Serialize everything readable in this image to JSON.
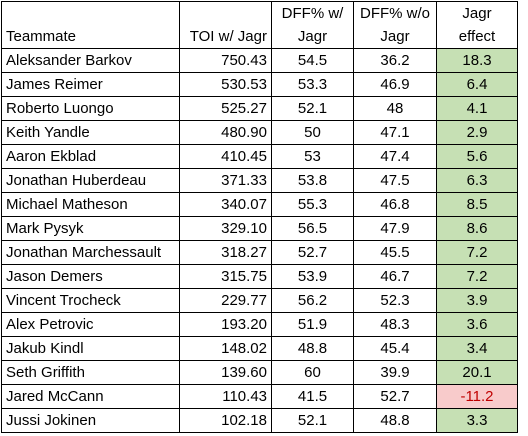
{
  "headers": {
    "teammate": "Teammate",
    "toi": "TOI w/ Jagr",
    "dff_with_line1": "DFF% w/",
    "dff_with_line2": "Jagr",
    "dff_without_line1": "DFF% w/o",
    "dff_without_line2": "Jagr",
    "effect_line1": "Jagr",
    "effect_line2": "effect"
  },
  "colors": {
    "positive_fill": "#c6e0b4",
    "negative_fill": "#f8cbcb",
    "negative_text": "#c00000"
  },
  "rows": [
    {
      "name": "Aleksander Barkov",
      "toi": "750.43",
      "dff_with": "54.5",
      "dff_without": "36.2",
      "effect": "18.3",
      "effect_sign": "pos"
    },
    {
      "name": "James Reimer",
      "toi": "530.53",
      "dff_with": "53.3",
      "dff_without": "46.9",
      "effect": "6.4",
      "effect_sign": "pos"
    },
    {
      "name": "Roberto Luongo",
      "toi": "525.27",
      "dff_with": "52.1",
      "dff_without": "48",
      "effect": "4.1",
      "effect_sign": "pos"
    },
    {
      "name": "Keith Yandle",
      "toi": "480.90",
      "dff_with": "50",
      "dff_without": "47.1",
      "effect": "2.9",
      "effect_sign": "pos"
    },
    {
      "name": "Aaron Ekblad",
      "toi": "410.45",
      "dff_with": "53",
      "dff_without": "47.4",
      "effect": "5.6",
      "effect_sign": "pos"
    },
    {
      "name": "Jonathan Huberdeau",
      "toi": "371.33",
      "dff_with": "53.8",
      "dff_without": "47.5",
      "effect": "6.3",
      "effect_sign": "pos"
    },
    {
      "name": "Michael Matheson",
      "toi": "340.07",
      "dff_with": "55.3",
      "dff_without": "46.8",
      "effect": "8.5",
      "effect_sign": "pos"
    },
    {
      "name": "Mark Pysyk",
      "toi": "329.10",
      "dff_with": "56.5",
      "dff_without": "47.9",
      "effect": "8.6",
      "effect_sign": "pos"
    },
    {
      "name": "Jonathan Marchessault",
      "toi": "318.27",
      "dff_with": "52.7",
      "dff_without": "45.5",
      "effect": "7.2",
      "effect_sign": "pos"
    },
    {
      "name": "Jason Demers",
      "toi": "315.75",
      "dff_with": "53.9",
      "dff_without": "46.7",
      "effect": "7.2",
      "effect_sign": "pos"
    },
    {
      "name": "Vincent Trocheck",
      "toi": "229.77",
      "dff_with": "56.2",
      "dff_without": "52.3",
      "effect": "3.9",
      "effect_sign": "pos"
    },
    {
      "name": "Alex Petrovic",
      "toi": "193.20",
      "dff_with": "51.9",
      "dff_without": "48.3",
      "effect": "3.6",
      "effect_sign": "pos"
    },
    {
      "name": "Jakub Kindl",
      "toi": "148.02",
      "dff_with": "48.8",
      "dff_without": "45.4",
      "effect": "3.4",
      "effect_sign": "pos"
    },
    {
      "name": "Seth Griffith",
      "toi": "139.60",
      "dff_with": "60",
      "dff_without": "39.9",
      "effect": "20.1",
      "effect_sign": "pos"
    },
    {
      "name": "Jared McCann",
      "toi": "110.43",
      "dff_with": "41.5",
      "dff_without": "52.7",
      "effect": "-11.2",
      "effect_sign": "neg"
    },
    {
      "name": "Jussi Jokinen",
      "toi": "102.18",
      "dff_with": "52.1",
      "dff_without": "48.8",
      "effect": "3.3",
      "effect_sign": "pos"
    }
  ]
}
